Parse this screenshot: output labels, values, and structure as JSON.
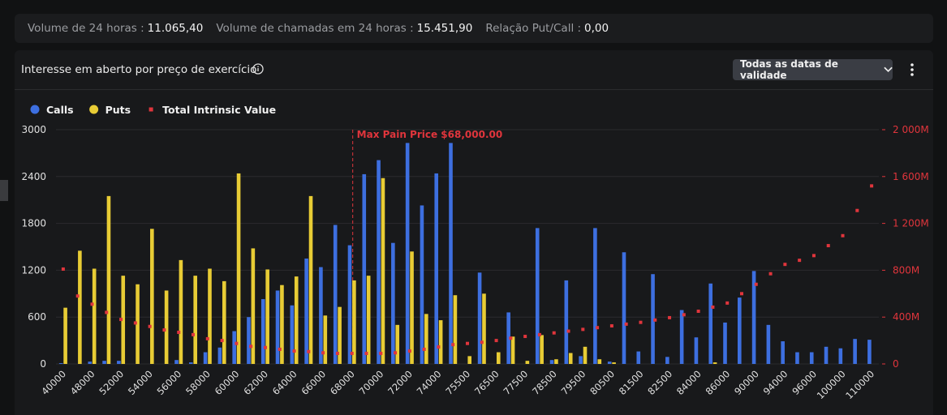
{
  "header": {
    "stats": [
      {
        "label": "Volume de 24 horas :",
        "value": "11.065,40"
      },
      {
        "label": "Volume de chamadas em 24 horas :",
        "value": "15.451,90"
      },
      {
        "label": "Relação Put/Call :",
        "value": "0,00"
      }
    ]
  },
  "panel": {
    "title": "Interesse em aberto por preço de exercício",
    "dropdown": "Todas as datas de validade"
  },
  "chart_data": {
    "type": "bar",
    "categories": [
      "40000",
      null,
      "48000",
      null,
      "52000",
      null,
      "54000",
      null,
      "56000",
      null,
      "58000",
      null,
      "60000",
      null,
      "62000",
      null,
      "64000",
      null,
      "66000",
      null,
      "68000",
      null,
      "70000",
      null,
      "72000",
      null,
      "74000",
      null,
      "75500",
      null,
      "76500",
      null,
      "77500",
      null,
      "78500",
      null,
      "79500",
      null,
      "80500",
      null,
      "81500",
      null,
      "82500",
      null,
      "84000",
      null,
      "86000",
      null,
      "90000",
      null,
      "94000",
      null,
      "96000",
      null,
      "100000",
      null,
      "110000"
    ],
    "series": [
      {
        "name": "Calls",
        "color": "#3d6fe0",
        "values": [
          10,
          0,
          30,
          40,
          40,
          0,
          0,
          0,
          50,
          20,
          150,
          210,
          420,
          600,
          830,
          940,
          750,
          1350,
          1240,
          1780,
          1520,
          2430,
          2610,
          1550,
          2830,
          2030,
          2440,
          2830,
          0,
          1170,
          0,
          660,
          0,
          1740,
          50,
          1070,
          100,
          1740,
          30,
          1430,
          160,
          1150,
          90,
          690,
          340,
          1030,
          530,
          850,
          1190,
          500,
          290,
          150,
          150,
          220,
          200,
          320,
          310
        ]
      },
      {
        "name": "Puts",
        "color": "#e8cc35",
        "values": [
          720,
          1450,
          1220,
          2150,
          1130,
          1020,
          1730,
          940,
          1330,
          1130,
          1220,
          1060,
          2440,
          1480,
          1210,
          1010,
          1120,
          2150,
          620,
          730,
          1070,
          1130,
          2380,
          500,
          1440,
          640,
          560,
          880,
          100,
          900,
          150,
          350,
          40,
          370,
          60,
          140,
          220,
          60,
          20,
          0,
          0,
          0,
          0,
          0,
          0,
          20,
          0,
          0,
          0,
          0,
          0,
          0,
          0,
          0,
          0,
          0,
          0
        ]
      },
      {
        "name": "Total Intrinsic Value",
        "color": "#e0353c",
        "axis": "y2",
        "values": [
          810,
          580,
          510,
          440,
          380,
          350,
          320,
          290,
          270,
          250,
          215,
          200,
          175,
          150,
          140,
          125,
          110,
          105,
          95,
          90,
          90,
          90,
          90,
          95,
          110,
          125,
          145,
          165,
          175,
          185,
          200,
          220,
          235,
          250,
          265,
          280,
          295,
          310,
          325,
          340,
          355,
          375,
          395,
          420,
          450,
          485,
          520,
          600,
          680,
          770,
          850,
          885,
          925,
          1010,
          1095,
          1310,
          1520
        ]
      }
    ],
    "ylim": [
      0,
      3000
    ],
    "yticks": [
      0,
      600,
      1200,
      1800,
      2400,
      3000
    ],
    "y2lim": [
      0,
      2000
    ],
    "y2ticks": [
      0,
      {
        "value": 400,
        "label": "400M"
      },
      {
        "value": 800,
        "label": "800M"
      },
      {
        "value": 1200,
        "label": "1 200M"
      },
      {
        "value": 1600,
        "label": "1 600M"
      },
      {
        "value": 2000,
        "label": "2 000M"
      }
    ],
    "grid": true,
    "annotation": {
      "text": "Max Pain Price $68,000.00",
      "category": "68000",
      "color": "#e0353c"
    }
  }
}
